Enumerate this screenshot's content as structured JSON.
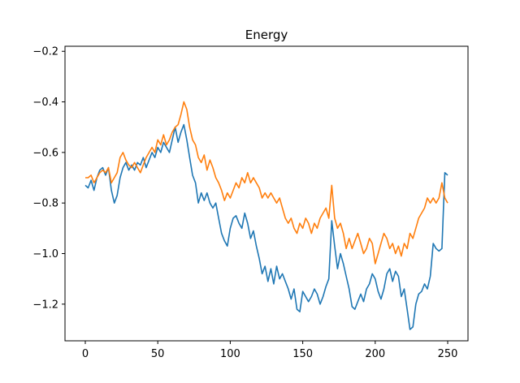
{
  "chart_data": {
    "type": "line",
    "title": "Energy",
    "xlabel": "",
    "ylabel": "",
    "xlim": [
      -14,
      264
    ],
    "ylim": [
      -1.345,
      -0.18
    ],
    "xticks": [
      0,
      50,
      100,
      150,
      200,
      250
    ],
    "xtick_labels": [
      "0",
      "50",
      "100",
      "150",
      "200",
      "250"
    ],
    "yticks": [
      -0.2,
      -0.4,
      -0.6,
      -0.8,
      -1.0,
      -1.2
    ],
    "ytick_labels": [
      "−0.2",
      "−0.4",
      "−0.6",
      "−0.8",
      "−1.0",
      "−1.2"
    ],
    "grid": false,
    "legend": "none",
    "series": [
      {
        "color": "#1f77b4",
        "points": [
          [
            0,
            -0.73
          ],
          [
            2,
            -0.74
          ],
          [
            4,
            -0.71
          ],
          [
            6,
            -0.75
          ],
          [
            8,
            -0.7
          ],
          [
            10,
            -0.67
          ],
          [
            12,
            -0.66
          ],
          [
            14,
            -0.69
          ],
          [
            16,
            -0.66
          ],
          [
            18,
            -0.75
          ],
          [
            20,
            -0.8
          ],
          [
            22,
            -0.77
          ],
          [
            24,
            -0.7
          ],
          [
            26,
            -0.66
          ],
          [
            28,
            -0.64
          ],
          [
            30,
            -0.67
          ],
          [
            32,
            -0.65
          ],
          [
            34,
            -0.67
          ],
          [
            36,
            -0.64
          ],
          [
            38,
            -0.65
          ],
          [
            40,
            -0.62
          ],
          [
            42,
            -0.66
          ],
          [
            44,
            -0.63
          ],
          [
            46,
            -0.6
          ],
          [
            48,
            -0.62
          ],
          [
            50,
            -0.58
          ],
          [
            52,
            -0.6
          ],
          [
            54,
            -0.56
          ],
          [
            56,
            -0.58
          ],
          [
            58,
            -0.6
          ],
          [
            60,
            -0.55
          ],
          [
            62,
            -0.5
          ],
          [
            64,
            -0.56
          ],
          [
            66,
            -0.52
          ],
          [
            68,
            -0.49
          ],
          [
            70,
            -0.55
          ],
          [
            72,
            -0.62
          ],
          [
            74,
            -0.69
          ],
          [
            76,
            -0.72
          ],
          [
            78,
            -0.8
          ],
          [
            80,
            -0.76
          ],
          [
            82,
            -0.79
          ],
          [
            84,
            -0.76
          ],
          [
            86,
            -0.8
          ],
          [
            88,
            -0.82
          ],
          [
            90,
            -0.8
          ],
          [
            92,
            -0.86
          ],
          [
            94,
            -0.92
          ],
          [
            96,
            -0.95
          ],
          [
            98,
            -0.97
          ],
          [
            100,
            -0.9
          ],
          [
            102,
            -0.86
          ],
          [
            104,
            -0.85
          ],
          [
            106,
            -0.88
          ],
          [
            108,
            -0.9
          ],
          [
            110,
            -0.84
          ],
          [
            112,
            -0.88
          ],
          [
            114,
            -0.94
          ],
          [
            116,
            -0.91
          ],
          [
            118,
            -0.97
          ],
          [
            120,
            -1.02
          ],
          [
            122,
            -1.08
          ],
          [
            124,
            -1.05
          ],
          [
            126,
            -1.11
          ],
          [
            128,
            -1.06
          ],
          [
            130,
            -1.12
          ],
          [
            132,
            -1.05
          ],
          [
            134,
            -1.1
          ],
          [
            136,
            -1.08
          ],
          [
            138,
            -1.11
          ],
          [
            140,
            -1.14
          ],
          [
            142,
            -1.18
          ],
          [
            144,
            -1.14
          ],
          [
            146,
            -1.22
          ],
          [
            148,
            -1.23
          ],
          [
            150,
            -1.15
          ],
          [
            152,
            -1.17
          ],
          [
            154,
            -1.19
          ],
          [
            156,
            -1.17
          ],
          [
            158,
            -1.14
          ],
          [
            160,
            -1.16
          ],
          [
            162,
            -1.2
          ],
          [
            164,
            -1.17
          ],
          [
            166,
            -1.13
          ],
          [
            168,
            -1.1
          ],
          [
            170,
            -0.87
          ],
          [
            172,
            -0.97
          ],
          [
            174,
            -1.06
          ],
          [
            176,
            -1.0
          ],
          [
            178,
            -1.04
          ],
          [
            180,
            -1.09
          ],
          [
            182,
            -1.14
          ],
          [
            184,
            -1.21
          ],
          [
            186,
            -1.22
          ],
          [
            188,
            -1.19
          ],
          [
            190,
            -1.16
          ],
          [
            192,
            -1.19
          ],
          [
            194,
            -1.14
          ],
          [
            196,
            -1.12
          ],
          [
            198,
            -1.08
          ],
          [
            200,
            -1.1
          ],
          [
            202,
            -1.15
          ],
          [
            204,
            -1.18
          ],
          [
            206,
            -1.14
          ],
          [
            208,
            -1.08
          ],
          [
            210,
            -1.06
          ],
          [
            212,
            -1.11
          ],
          [
            214,
            -1.07
          ],
          [
            216,
            -1.09
          ],
          [
            218,
            -1.17
          ],
          [
            220,
            -1.14
          ],
          [
            222,
            -1.22
          ],
          [
            224,
            -1.3
          ],
          [
            226,
            -1.29
          ],
          [
            228,
            -1.2
          ],
          [
            230,
            -1.16
          ],
          [
            232,
            -1.15
          ],
          [
            234,
            -1.12
          ],
          [
            236,
            -1.14
          ],
          [
            238,
            -1.09
          ],
          [
            240,
            -0.96
          ],
          [
            242,
            -0.98
          ],
          [
            244,
            -0.99
          ],
          [
            246,
            -0.98
          ],
          [
            248,
            -0.68
          ],
          [
            250,
            -0.69
          ]
        ]
      },
      {
        "color": "#ff7f0e",
        "points": [
          [
            0,
            -0.7
          ],
          [
            2,
            -0.7
          ],
          [
            4,
            -0.69
          ],
          [
            6,
            -0.72
          ],
          [
            8,
            -0.7
          ],
          [
            10,
            -0.68
          ],
          [
            12,
            -0.67
          ],
          [
            14,
            -0.68
          ],
          [
            16,
            -0.66
          ],
          [
            18,
            -0.72
          ],
          [
            20,
            -0.7
          ],
          [
            22,
            -0.68
          ],
          [
            24,
            -0.62
          ],
          [
            26,
            -0.6
          ],
          [
            28,
            -0.63
          ],
          [
            30,
            -0.65
          ],
          [
            32,
            -0.66
          ],
          [
            34,
            -0.64
          ],
          [
            36,
            -0.66
          ],
          [
            38,
            -0.68
          ],
          [
            40,
            -0.65
          ],
          [
            42,
            -0.62
          ],
          [
            44,
            -0.6
          ],
          [
            46,
            -0.58
          ],
          [
            48,
            -0.6
          ],
          [
            50,
            -0.55
          ],
          [
            52,
            -0.57
          ],
          [
            54,
            -0.53
          ],
          [
            56,
            -0.57
          ],
          [
            58,
            -0.55
          ],
          [
            60,
            -0.52
          ],
          [
            62,
            -0.5
          ],
          [
            64,
            -0.49
          ],
          [
            66,
            -0.45
          ],
          [
            68,
            -0.4
          ],
          [
            70,
            -0.43
          ],
          [
            72,
            -0.5
          ],
          [
            74,
            -0.55
          ],
          [
            76,
            -0.57
          ],
          [
            78,
            -0.62
          ],
          [
            80,
            -0.64
          ],
          [
            82,
            -0.61
          ],
          [
            84,
            -0.67
          ],
          [
            86,
            -0.63
          ],
          [
            88,
            -0.66
          ],
          [
            90,
            -0.7
          ],
          [
            92,
            -0.72
          ],
          [
            94,
            -0.75
          ],
          [
            96,
            -0.79
          ],
          [
            98,
            -0.76
          ],
          [
            100,
            -0.78
          ],
          [
            102,
            -0.75
          ],
          [
            104,
            -0.72
          ],
          [
            106,
            -0.74
          ],
          [
            108,
            -0.7
          ],
          [
            110,
            -0.72
          ],
          [
            112,
            -0.68
          ],
          [
            114,
            -0.72
          ],
          [
            116,
            -0.7
          ],
          [
            118,
            -0.72
          ],
          [
            120,
            -0.74
          ],
          [
            122,
            -0.78
          ],
          [
            124,
            -0.76
          ],
          [
            126,
            -0.78
          ],
          [
            128,
            -0.76
          ],
          [
            130,
            -0.78
          ],
          [
            132,
            -0.8
          ],
          [
            134,
            -0.78
          ],
          [
            136,
            -0.82
          ],
          [
            138,
            -0.86
          ],
          [
            140,
            -0.88
          ],
          [
            142,
            -0.86
          ],
          [
            144,
            -0.9
          ],
          [
            146,
            -0.92
          ],
          [
            148,
            -0.88
          ],
          [
            150,
            -0.9
          ],
          [
            152,
            -0.86
          ],
          [
            154,
            -0.88
          ],
          [
            156,
            -0.92
          ],
          [
            158,
            -0.88
          ],
          [
            160,
            -0.9
          ],
          [
            162,
            -0.86
          ],
          [
            164,
            -0.84
          ],
          [
            166,
            -0.82
          ],
          [
            168,
            -0.86
          ],
          [
            170,
            -0.73
          ],
          [
            172,
            -0.86
          ],
          [
            174,
            -0.9
          ],
          [
            176,
            -0.88
          ],
          [
            178,
            -0.92
          ],
          [
            180,
            -0.98
          ],
          [
            182,
            -0.94
          ],
          [
            184,
            -0.98
          ],
          [
            186,
            -0.95
          ],
          [
            188,
            -0.92
          ],
          [
            190,
            -0.96
          ],
          [
            192,
            -1.0
          ],
          [
            194,
            -0.98
          ],
          [
            196,
            -0.94
          ],
          [
            198,
            -0.96
          ],
          [
            200,
            -1.04
          ],
          [
            202,
            -1.0
          ],
          [
            204,
            -0.96
          ],
          [
            206,
            -0.92
          ],
          [
            208,
            -0.94
          ],
          [
            210,
            -0.98
          ],
          [
            212,
            -0.96
          ],
          [
            214,
            -1.0
          ],
          [
            216,
            -0.97
          ],
          [
            218,
            -1.01
          ],
          [
            220,
            -0.96
          ],
          [
            222,
            -0.98
          ],
          [
            224,
            -0.92
          ],
          [
            226,
            -0.94
          ],
          [
            228,
            -0.9
          ],
          [
            230,
            -0.86
          ],
          [
            232,
            -0.84
          ],
          [
            234,
            -0.82
          ],
          [
            236,
            -0.78
          ],
          [
            238,
            -0.8
          ],
          [
            240,
            -0.78
          ],
          [
            242,
            -0.8
          ],
          [
            244,
            -0.78
          ],
          [
            246,
            -0.72
          ],
          [
            248,
            -0.78
          ],
          [
            250,
            -0.8
          ]
        ]
      }
    ]
  }
}
